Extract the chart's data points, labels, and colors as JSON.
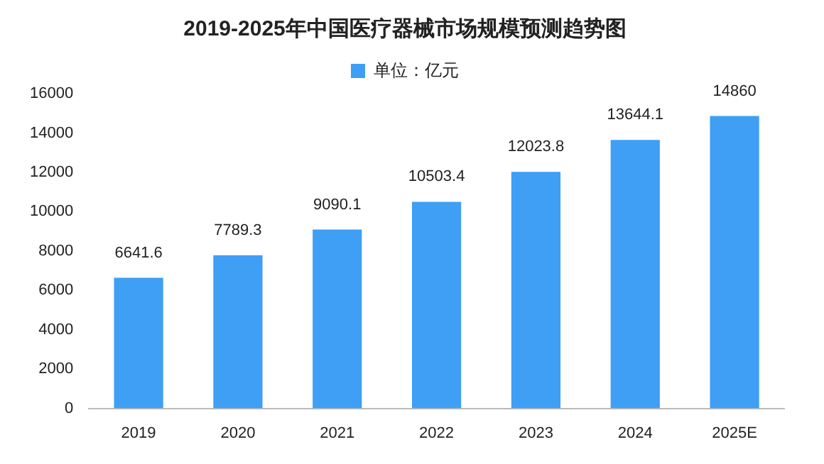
{
  "chart_data": {
    "type": "bar",
    "title": "2019-2025年中国医疗器械市场规模预测趋势图",
    "categories": [
      "2019",
      "2020",
      "2021",
      "2022",
      "2023",
      "2024",
      "2025E"
    ],
    "series": [
      {
        "name": "单位：亿元",
        "color": "#3e9ff5",
        "values": [
          6641.6,
          7789.3,
          9090.1,
          10503.4,
          12023.8,
          13644.1,
          14860
        ]
      }
    ],
    "ylim": [
      0,
      16000
    ],
    "yticks": [
      0,
      2000,
      4000,
      6000,
      8000,
      10000,
      12000,
      14000,
      16000
    ],
    "grid": false,
    "legend": "top",
    "data_labels": true
  }
}
